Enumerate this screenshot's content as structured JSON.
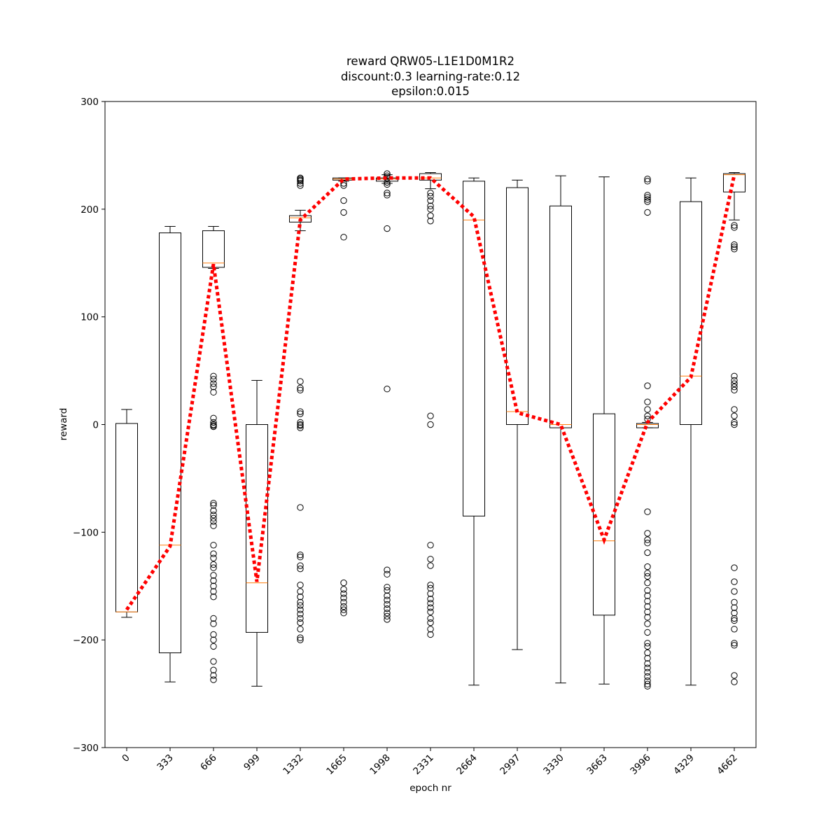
{
  "chart_data": {
    "type": "box",
    "title_lines": [
      "reward QRW05-L1E1D0M1R2",
      "discount:0.3 learning-rate:0.12",
      "epsilon:0.015"
    ],
    "xlabel": "epoch nr",
    "ylabel": "reward",
    "ylim": [
      -300,
      300
    ],
    "yticks": [
      -300,
      -200,
      -100,
      0,
      100,
      200,
      300
    ],
    "categories": [
      "0",
      "333",
      "666",
      "999",
      "1332",
      "1665",
      "1998",
      "2331",
      "2664",
      "2997",
      "3330",
      "3663",
      "3996",
      "4329",
      "4662"
    ],
    "boxes": [
      {
        "whisker_low": -179,
        "q1": -174,
        "median": -174,
        "q3": 1,
        "whisker_high": 14,
        "fliers": []
      },
      {
        "whisker_low": -239,
        "q1": -212,
        "median": -112,
        "q3": 178,
        "whisker_high": 184,
        "fliers": []
      },
      {
        "whisker_low": 145,
        "q1": 146,
        "median": 150,
        "q3": 180,
        "whisker_high": 184,
        "fliers": [
          45,
          42,
          38,
          35,
          30,
          6,
          2,
          0,
          -1,
          -2,
          -73,
          -75,
          -80,
          -84,
          -87,
          -90,
          -94,
          -112,
          -120,
          -124,
          -130,
          -133,
          -140,
          -145,
          -150,
          -155,
          -160,
          -180,
          -185,
          -195,
          -200,
          -206,
          -220,
          -228,
          -233,
          -237
        ]
      },
      {
        "whisker_low": -243,
        "q1": -193,
        "median": -147,
        "q3": 0,
        "whisker_high": 41,
        "fliers": []
      },
      {
        "whisker_low": 180,
        "q1": 188,
        "median": 192,
        "q3": 194,
        "whisker_high": 199,
        "fliers": [
          229,
          228,
          227,
          226,
          224,
          222,
          40,
          34,
          32,
          12,
          10,
          2,
          0,
          -1,
          -3,
          -77,
          -121,
          -123,
          -131,
          -134,
          -149,
          -155,
          -160,
          -165,
          -168,
          -172,
          -176,
          -180,
          -184,
          -190,
          -198,
          -200
        ]
      },
      {
        "whisker_low": 226,
        "q1": 227,
        "median": 228,
        "q3": 229,
        "whisker_high": 229,
        "fliers": [
          224,
          222,
          208,
          197,
          174,
          -147,
          -153,
          -157,
          -161,
          -165,
          -169,
          -172,
          -175
        ]
      },
      {
        "whisker_low": 224,
        "q1": 226,
        "median": 228,
        "q3": 229,
        "whisker_high": 232,
        "fliers": [
          233,
          231,
          229,
          225,
          223,
          215,
          213,
          182,
          33,
          -135,
          -139,
          -151,
          -154,
          -159,
          -163,
          -167,
          -171,
          -175,
          -178,
          -181
        ]
      },
      {
        "whisker_low": 219,
        "q1": 227,
        "median": 229,
        "q3": 233,
        "whisker_high": 234,
        "fliers": [
          215,
          212,
          208,
          203,
          200,
          194,
          189,
          8,
          0,
          -112,
          -125,
          -131,
          -149,
          -152,
          -157,
          -162,
          -166,
          -170,
          -174,
          -180,
          -184,
          -190,
          -195
        ]
      },
      {
        "whisker_low": -242,
        "q1": -85,
        "median": 190,
        "q3": 226,
        "whisker_high": 229,
        "fliers": []
      },
      {
        "whisker_low": -209,
        "q1": 0,
        "median": 12,
        "q3": 220,
        "whisker_high": 227,
        "fliers": []
      },
      {
        "whisker_low": -240,
        "q1": -3,
        "median": 0,
        "q3": 203,
        "whisker_high": 231,
        "fliers": []
      },
      {
        "whisker_low": -241,
        "q1": -177,
        "median": -108,
        "q3": 10,
        "whisker_high": 230,
        "fliers": []
      },
      {
        "whisker_low": -3,
        "q1": -3,
        "median": 0,
        "q3": 1,
        "whisker_high": 2,
        "fliers": [
          228,
          226,
          213,
          211,
          209,
          207,
          197,
          36,
          21,
          14,
          8,
          5,
          -81,
          -101,
          -107,
          -110,
          -119,
          -132,
          -138,
          -141,
          -147,
          -154,
          -159,
          -164,
          -169,
          -174,
          -179,
          -185,
          -193,
          -203,
          -206,
          -212,
          -217,
          -222,
          -226,
          -230,
          -234,
          -238,
          -241,
          -243
        ]
      },
      {
        "whisker_low": -242,
        "q1": 0,
        "median": 45,
        "q3": 207,
        "whisker_high": 229,
        "fliers": []
      },
      {
        "whisker_low": 190,
        "q1": 216,
        "median": 232,
        "q3": 233,
        "whisker_high": 234,
        "fliers": [
          185,
          183,
          167,
          165,
          163,
          45,
          41,
          38,
          35,
          32,
          14,
          8,
          2,
          0,
          -133,
          -146,
          -155,
          -165,
          -170,
          -175,
          -180,
          -182,
          -190,
          -203,
          -205,
          -233,
          -239
        ]
      }
    ],
    "mean_line": {
      "style": "dotted",
      "values": [
        -172,
        -113,
        149,
        -146,
        190,
        228,
        229,
        229,
        193,
        11,
        0,
        -107,
        2,
        44,
        232
      ]
    },
    "colors": {
      "box": "#000000",
      "median": "#ff7f0e",
      "mean_line": "#ff0000",
      "flier": "#000000"
    },
    "grid": false
  }
}
